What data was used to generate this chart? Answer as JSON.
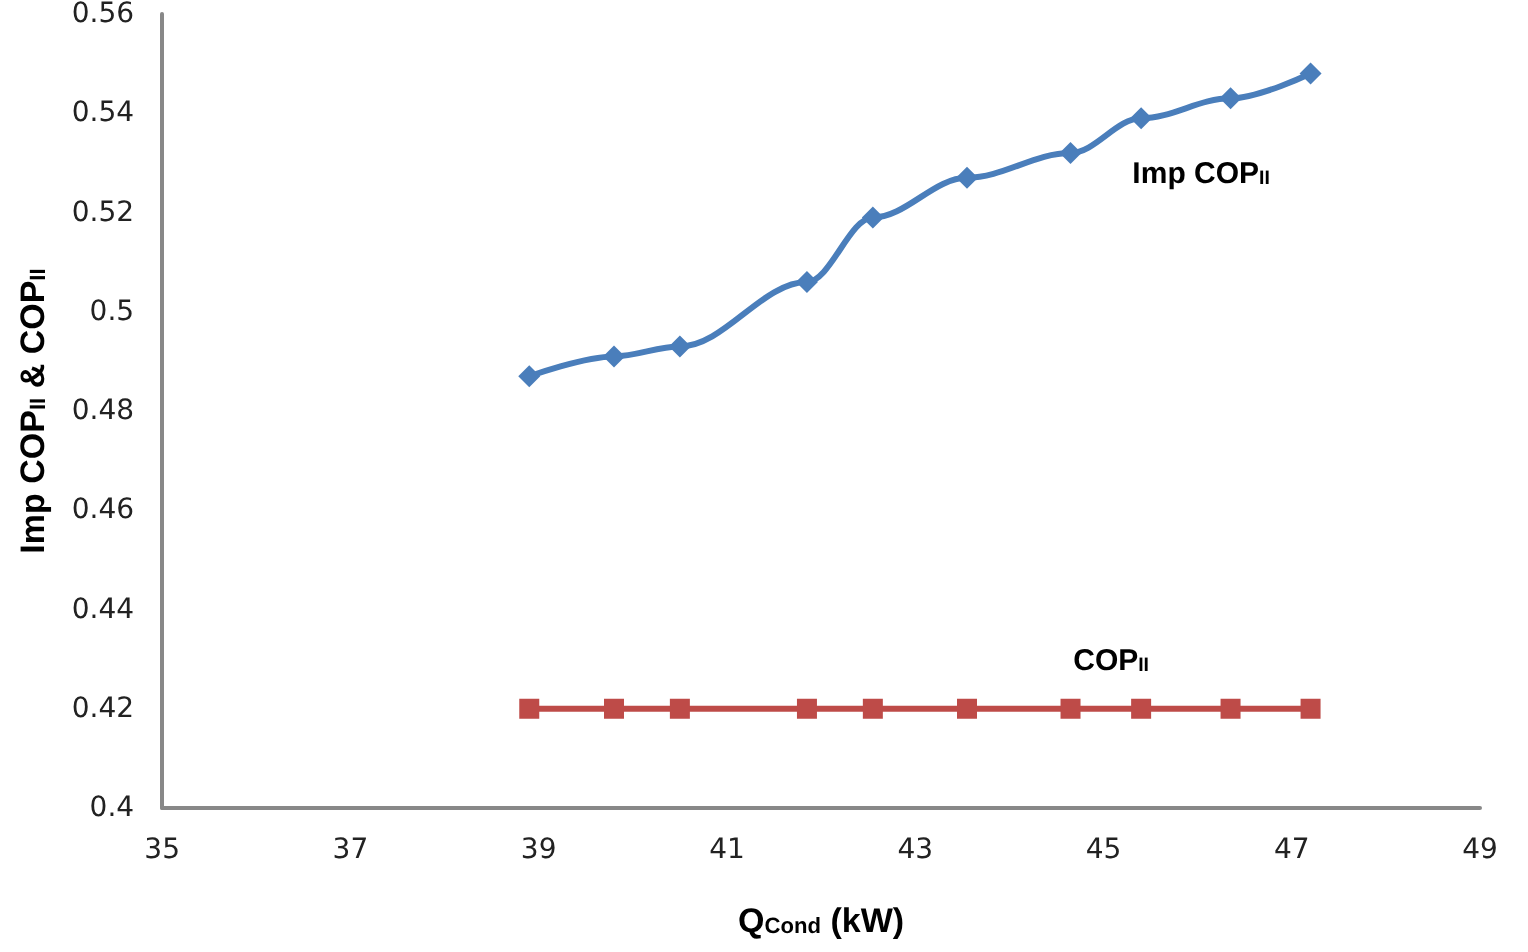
{
  "chart_data": {
    "type": "line",
    "xlabel": "Q$_{Cond}$ (kW)",
    "ylabel": "Imp COP$_{II}$ & COP$_{II}$",
    "xlim": [
      35,
      49
    ],
    "xticks": [
      35,
      37,
      39,
      41,
      43,
      45,
      47,
      49
    ],
    "ylim": [
      0.4,
      0.56
    ],
    "yticks": [
      0.4,
      0.42,
      0.44,
      0.46,
      0.48,
      0.5,
      0.52,
      0.54,
      0.56
    ],
    "grid": false,
    "legend": false,
    "x": [
      38.9,
      39.8,
      40.5,
      41.85,
      42.55,
      43.55,
      44.65,
      45.4,
      46.35,
      47.2
    ],
    "series": [
      {
        "name": "Imp COP$_{II}$",
        "color": "#4a7ebb",
        "marker": "diamond",
        "values": [
          0.487,
          0.491,
          0.493,
          0.506,
          0.519,
          0.527,
          0.532,
          0.539,
          0.543,
          0.548
        ]
      },
      {
        "name": "COP$_{II}$",
        "color": "#be4b48",
        "marker": "square",
        "values": [
          0.42,
          0.42,
          0.42,
          0.42,
          0.42,
          0.42,
          0.42,
          0.42,
          0.42,
          0.42
        ]
      }
    ]
  }
}
